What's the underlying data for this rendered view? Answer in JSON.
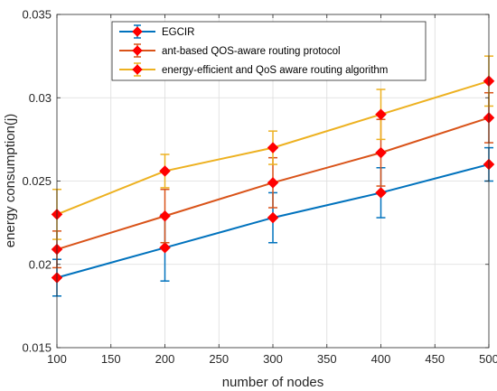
{
  "chart_data": {
    "type": "line",
    "title": "",
    "xlabel": "number of nodes",
    "ylabel": "energy consumption(j)",
    "x": [
      100,
      200,
      300,
      400,
      500
    ],
    "xlim": [
      100,
      500
    ],
    "ylim": [
      0.015,
      0.035
    ],
    "xticks": [
      100,
      150,
      200,
      250,
      300,
      350,
      400,
      450,
      500
    ],
    "yticks": [
      0.015,
      0.02,
      0.025,
      0.03,
      0.035
    ],
    "xtick_labels": [
      "100",
      "150",
      "200",
      "250",
      "300",
      "350",
      "400",
      "450",
      "500"
    ],
    "ytick_labels": [
      "0.015",
      "0.02",
      "0.025",
      "0.03",
      "0.035"
    ],
    "grid": true,
    "legend_position": "top-left",
    "marker_color": "#ff0000",
    "series": [
      {
        "name": "EGCIR",
        "color": "#0072bd",
        "values": [
          0.0192,
          0.021,
          0.0228,
          0.0243,
          0.026
        ],
        "error": [
          0.0011,
          0.002,
          0.0015,
          0.0015,
          0.001
        ]
      },
      {
        "name": "ant-based QOS-aware routing protocol",
        "color": "#d95319",
        "values": [
          0.0209,
          0.0229,
          0.0249,
          0.0267,
          0.0288
        ],
        "error": [
          0.0011,
          0.0016,
          0.0015,
          0.002,
          0.0015
        ]
      },
      {
        "name": "energy-efficient and QoS aware routing algorithm",
        "color": "#edb120",
        "values": [
          0.023,
          0.0256,
          0.027,
          0.029,
          0.031
        ],
        "error": [
          0.0015,
          0.001,
          0.001,
          0.0015,
          0.0015
        ]
      }
    ]
  }
}
